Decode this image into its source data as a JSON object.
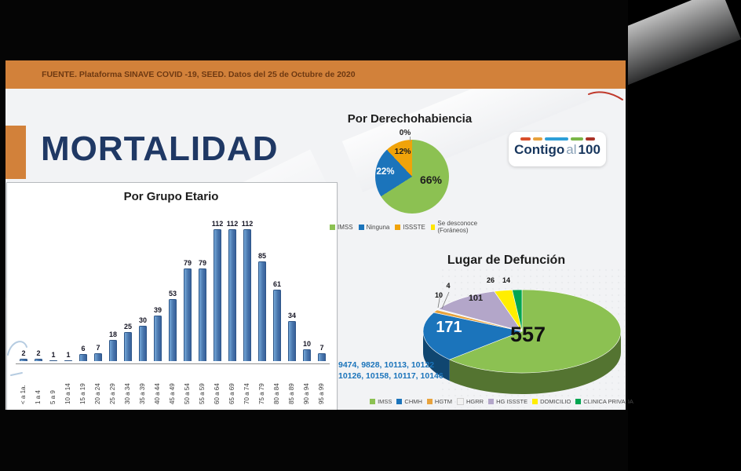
{
  "source_bar": {
    "text": "FUENTE. Plataforma SINAVE COVID -19, SEED. Datos del 25 de Octubre de 2020"
  },
  "page_title": "MORTALIDAD",
  "logo": {
    "word1": "Contigo",
    "word2": "al",
    "word3": "100"
  },
  "footnote": {
    "line1": "9474, 9828, 10113, 10122",
    "line2": "10126, 10158, 10117, 10146"
  },
  "chart_data": [
    {
      "type": "bar",
      "title": "Por Grupo Etario",
      "categories": [
        "< a 1a.",
        "1 a 4",
        "5 a 9",
        "10 a 14",
        "15 a 19",
        "20 a 24",
        "25 a 29",
        "30 a 34",
        "35 a 39",
        "40 a 44",
        "45 a 49",
        "50 a 54",
        "55 a 59",
        "60 a 64",
        "65 a 69",
        "70 a 74",
        "75 a 79",
        "80 a 84",
        "85 a 89",
        "90 a 94",
        "95 a 99"
      ],
      "values": [
        2,
        2,
        1,
        1,
        6,
        7,
        18,
        25,
        30,
        39,
        53,
        79,
        79,
        112,
        112,
        112,
        85,
        61,
        34,
        10,
        7
      ],
      "bar_color": "#4f7cb4",
      "ylim": [
        0,
        120
      ],
      "grid": false,
      "data_labels": true,
      "xlabel": "",
      "ylabel": ""
    },
    {
      "type": "pie",
      "title": "Por Derechohabiencia",
      "labels": [
        "66%",
        "22%",
        "12%",
        "0%"
      ],
      "values": [
        66,
        22,
        12,
        0
      ],
      "legend": [
        "IMSS",
        "Ninguna",
        "ISSSTE",
        "Se desconoce (Foráneos)"
      ],
      "colors": [
        "#8cc152",
        "#1b74bb",
        "#f0a30a",
        "#ffe600"
      ],
      "legend_position": "bottom"
    },
    {
      "type": "pie",
      "style": "3d",
      "title": "Lugar de Defunción",
      "labels": [
        "557",
        "171",
        "10",
        "4",
        "101",
        "26",
        "14"
      ],
      "values": [
        557,
        171,
        10,
        4,
        101,
        26,
        14
      ],
      "legend": [
        "IMSS",
        "CHMH",
        "HGTM",
        "HGRR",
        "HG ISSSTE",
        "DOMICILIO",
        "CLINICA PRIVADA"
      ],
      "colors": [
        "#8cc152",
        "#1b74bb",
        "#e8a33d",
        "#f2f2f2",
        "#b3a6c9",
        "#ffee00",
        "#00a651"
      ],
      "legend_position": "bottom"
    }
  ]
}
